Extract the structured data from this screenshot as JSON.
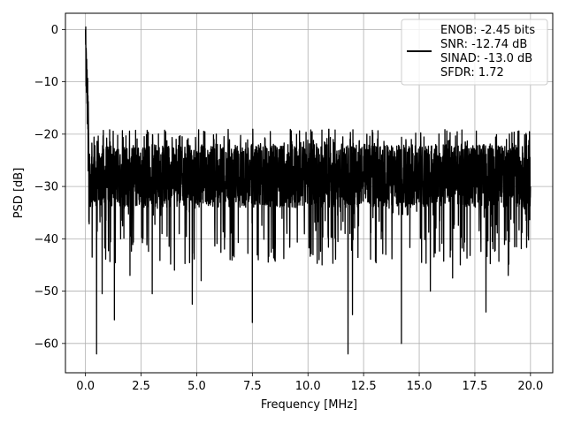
{
  "chart_data": {
    "type": "line",
    "title": "",
    "xlabel": "Frequency [MHz]",
    "ylabel": "PSD [dB]",
    "xlim": [
      -0.9,
      21.0
    ],
    "ylim": [
      -65.6,
      3.1
    ],
    "xticks": [
      0.0,
      2.5,
      5.0,
      7.5,
      10.0,
      12.5,
      15.0,
      17.5,
      20.0
    ],
    "xtick_labels": [
      "0.0",
      "2.5",
      "5.0",
      "7.5",
      "10.0",
      "12.5",
      "15.0",
      "17.5",
      "20.0"
    ],
    "yticks": [
      0,
      -10,
      -20,
      -30,
      -40,
      -50,
      -60
    ],
    "ytick_labels": [
      "0",
      "−10",
      "−20",
      "−30",
      "−40",
      "−50",
      "−60"
    ],
    "grid": true,
    "line_color": "#000000",
    "legend": {
      "placement": "top-right",
      "entries": [
        "ENOB: -2.45 bits",
        "SNR: -12.74 dB",
        "SINAD: -13.0 dB",
        "SFDR: 1.72"
      ]
    },
    "series": [
      {
        "x": [
          0.0,
          0.02,
          0.05,
          0.08,
          0.12,
          0.16,
          0.2,
          0.3,
          0.45,
          0.5,
          0.6,
          0.75,
          1.0,
          1.3,
          1.5,
          2.0,
          2.5,
          3.0,
          3.1,
          3.5,
          4.0,
          4.5,
          4.8,
          5.0,
          5.2,
          5.5,
          6.0,
          6.5,
          7.0,
          7.5,
          7.8,
          8.0,
          8.5,
          8.7,
          9.0,
          9.5,
          10.0,
          10.5,
          11.0,
          11.5,
          11.8,
          11.9,
          12.0,
          12.5,
          13.0,
          13.5,
          14.0,
          14.2,
          14.5,
          15.0,
          15.5,
          16.0,
          16.5,
          17.0,
          17.5,
          18.0,
          18.5,
          19.0,
          19.5,
          20.0
        ],
        "y": [
          0.0,
          -5.0,
          -12.0,
          -18.0,
          -27.0,
          -31.0,
          -28.0,
          -43.5,
          -28.0,
          -62.0,
          -30.0,
          -50.5,
          -29.0,
          -55.5,
          -28.0,
          -47.0,
          -27.0,
          -50.5,
          -28.0,
          -30.0,
          -46.0,
          -29.0,
          -52.5,
          -28.0,
          -48.0,
          -30.0,
          -29.0,
          -44.0,
          -28.0,
          -56.0,
          -30.0,
          -29.0,
          -44.0,
          -28.0,
          -31.0,
          -29.0,
          -30.0,
          -44.0,
          -29.0,
          -28.0,
          -62.0,
          -29.0,
          -54.5,
          -30.0,
          -29.0,
          -43.0,
          -28.0,
          -60.0,
          -30.0,
          -29.0,
          -50.0,
          -28.0,
          -47.5,
          -29.0,
          -30.0,
          -54.0,
          -28.0,
          -47.0,
          -29.0,
          -30.0
        ]
      }
    ]
  }
}
